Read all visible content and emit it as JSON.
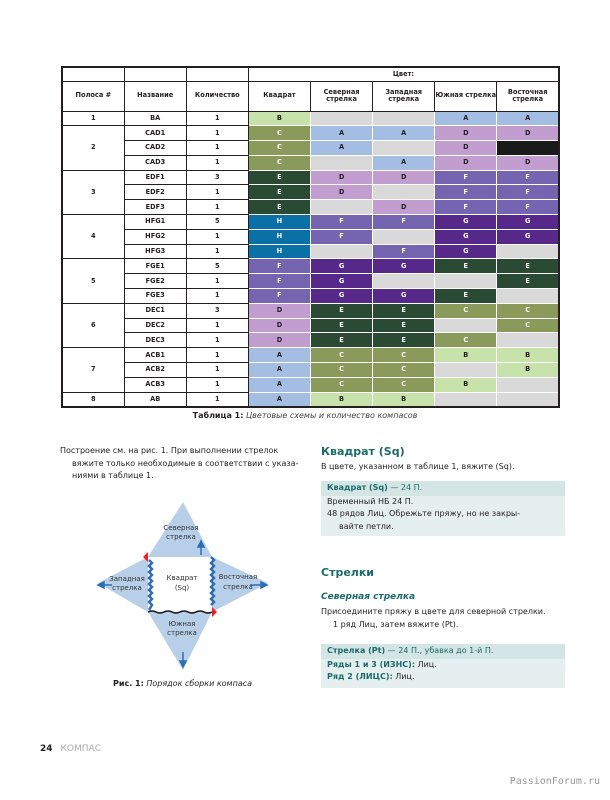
{
  "colors": {
    "A": "#a3bde3",
    "B": "#c8e2ab",
    "C": "#8a9a5a",
    "D": "#c29dd0",
    "E": "#2b4a33",
    "F": "#7564b0",
    "G": "#56288a",
    "H": "#0a70a6",
    "empty": "#d9d9d9",
    "X": "#1a1a1a"
  },
  "dark_codes": [
    "C",
    "E",
    "F",
    "G",
    "H"
  ],
  "table": {
    "color_header": "Цвет:",
    "headers": [
      "Полоса #",
      "Название",
      "Количество",
      "Квадрат",
      "Северная стрелка",
      "Западная стрелка",
      "Южная стрелка",
      "Восточная стрелка"
    ],
    "groups": [
      {
        "strip": "1",
        "rows": [
          {
            "name": "BA",
            "qty": "1",
            "cells": [
              "B",
              "",
              "",
              "A",
              "A"
            ]
          }
        ]
      },
      {
        "strip": "2",
        "rows": [
          {
            "name": "CAD1",
            "qty": "1",
            "cells": [
              "C",
              "A",
              "A",
              "D",
              "D"
            ]
          },
          {
            "name": "CAD2",
            "qty": "1",
            "cells": [
              "C",
              "A",
              "",
              "D",
              "X"
            ]
          },
          {
            "name": "CAD3",
            "qty": "1",
            "cells": [
              "C",
              "",
              "A",
              "D",
              "D"
            ]
          }
        ]
      },
      {
        "strip": "3",
        "rows": [
          {
            "name": "EDF1",
            "qty": "3",
            "cells": [
              "E",
              "D",
              "D",
              "F",
              "F"
            ]
          },
          {
            "name": "EDF2",
            "qty": "1",
            "cells": [
              "E",
              "D",
              "",
              "F",
              "F"
            ]
          },
          {
            "name": "EDF3",
            "qty": "1",
            "cells": [
              "E",
              "",
              "D",
              "F",
              "F"
            ]
          }
        ]
      },
      {
        "strip": "4",
        "rows": [
          {
            "name": "HFG1",
            "qty": "5",
            "cells": [
              "H",
              "F",
              "F",
              "G",
              "G"
            ]
          },
          {
            "name": "HFG2",
            "qty": "1",
            "cells": [
              "H",
              "F",
              "",
              "G",
              "G"
            ]
          },
          {
            "name": "HFG3",
            "qty": "1",
            "cells": [
              "H",
              "",
              "F",
              "G",
              ""
            ]
          }
        ]
      },
      {
        "strip": "5",
        "rows": [
          {
            "name": "FGE1",
            "qty": "5",
            "cells": [
              "F",
              "G",
              "G",
              "E",
              "E"
            ]
          },
          {
            "name": "FGE2",
            "qty": "1",
            "cells": [
              "F",
              "G",
              "",
              "",
              "E"
            ]
          },
          {
            "name": "FGE3",
            "qty": "1",
            "cells": [
              "F",
              "G",
              "G",
              "E",
              ""
            ]
          }
        ]
      },
      {
        "strip": "6",
        "rows": [
          {
            "name": "DEC1",
            "qty": "3",
            "cells": [
              "D",
              "E",
              "E",
              "C",
              "C"
            ]
          },
          {
            "name": "DEC2",
            "qty": "1",
            "cells": [
              "D",
              "E",
              "E",
              "",
              "C"
            ]
          },
          {
            "name": "DEC3",
            "qty": "1",
            "cells": [
              "D",
              "E",
              "E",
              "C",
              ""
            ]
          }
        ]
      },
      {
        "strip": "7",
        "rows": [
          {
            "name": "ACB1",
            "qty": "1",
            "cells": [
              "A",
              "C",
              "C",
              "B",
              "B"
            ]
          },
          {
            "name": "ACB2",
            "qty": "1",
            "cells": [
              "A",
              "C",
              "C",
              "",
              "B"
            ]
          },
          {
            "name": "ACB3",
            "qty": "1",
            "cells": [
              "A",
              "C",
              "C",
              "B",
              ""
            ]
          }
        ]
      },
      {
        "strip": "8",
        "rows": [
          {
            "name": "AB",
            "qty": "1",
            "cells": [
              "A",
              "B",
              "B",
              "",
              ""
            ]
          }
        ]
      }
    ],
    "caption_label": "Таблица 1:",
    "caption_text": " Цветовые схемы и количество компасов"
  },
  "left": {
    "para": [
      "Построение см. на рис. 1. При выполнении стрелок",
      "вяжите только необходимые в соответствии с указа-",
      "ниями в таблице 1."
    ],
    "figure": {
      "north": [
        "Северная",
        "стрелка"
      ],
      "west": [
        "Западная",
        "стрелка"
      ],
      "east": [
        "Восточная",
        "стрелка"
      ],
      "south": [
        "Южная",
        "стрелка"
      ],
      "square": [
        "Квадрат",
        "(Sq)"
      ],
      "caption_label": "Рис. 1:",
      "caption_text": " Порядок сборки компаса"
    }
  },
  "right": {
    "h_square": "Квадрат (Sq)",
    "p_square": "В цвете, указанном в таблице 1, вяжите (Sq).",
    "box1": {
      "title": "Квадрат (Sq)",
      "title_rest": " — 24 П.",
      "lines": [
        "Временный НБ 24 П.",
        "48 рядов Лиц. Обрежьте пряжу, но не закры-",
        "вайте петли."
      ]
    },
    "h_arrows": "Стрелки",
    "h_north": "Северная стрелка",
    "p_north": [
      "Присоедините пряжу в цвете для северной стрелки.",
      "1 ряд Лиц, затем вяжите (Pt)."
    ],
    "box2": {
      "title": "Стрелка (Pt)",
      "title_rest": " — 24 П., убавка до 1-й П.",
      "r1_label": "Ряды 1 и 3 (ИЗНС):",
      "r1_text": " Лиц.",
      "r2_label": "Ряд 2 (ЛИЦС):",
      "r2_text": " Лиц."
    }
  },
  "footer": {
    "page": "24",
    "section": "КОМПАС"
  },
  "watermark": "PassionForum.ru"
}
